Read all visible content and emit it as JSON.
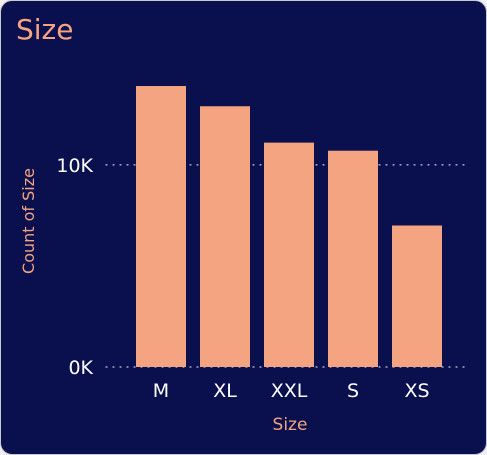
{
  "card": {
    "title": "Size"
  },
  "colors": {
    "background": "#0a0f4d",
    "bar": "#f4a481",
    "title": "#f4a481",
    "axis_text": "#ffffff",
    "grid": "#c8cae0"
  },
  "chart_data": {
    "type": "bar",
    "title": "Size",
    "xlabel": "Size",
    "ylabel": "Count of Size",
    "categories": [
      "M",
      "XL",
      "XXL",
      "S",
      "XS"
    ],
    "series": [
      {
        "values": [
          13900,
          12900,
          11100,
          10700,
          7000
        ]
      }
    ],
    "ylim": [
      0,
      14000
    ],
    "yticks": [
      0,
      10000
    ],
    "ytick_labels": [
      "0K",
      "10K"
    ],
    "grid": "dotted horizontal",
    "legend": "none"
  }
}
